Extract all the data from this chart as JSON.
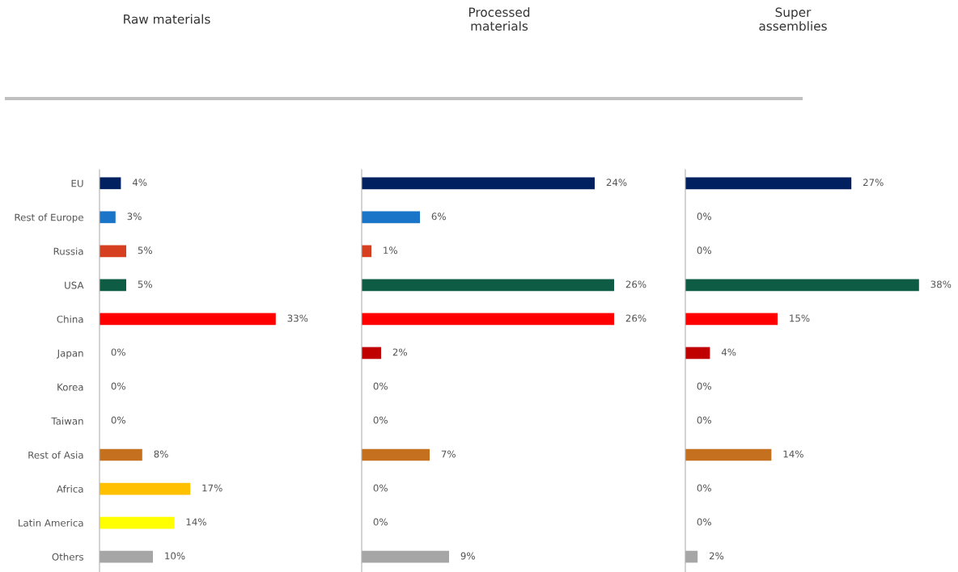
{
  "chart_data": [
    {
      "type": "bar",
      "orientation": "horizontal",
      "title": "Raw materials",
      "categories": [
        "EU",
        "Rest of Europe",
        "Russia",
        "USA",
        "China",
        "Japan",
        "Korea",
        "Taiwan",
        "Rest of Asia",
        "Africa",
        "Latin America",
        "Others"
      ],
      "values": [
        4,
        3,
        5,
        5,
        33,
        0,
        0,
        0,
        8,
        17,
        14,
        10
      ],
      "value_labels": [
        "4%",
        "3%",
        "5%",
        "5%",
        "33%",
        "0%",
        "0%",
        "0%",
        "8%",
        "17%",
        "14%",
        "10%"
      ],
      "colors": [
        "#002060",
        "#1a75c8",
        "#d63f1f",
        "#0f5c45",
        "#ff0000",
        "#c00000",
        "#ffd966",
        "#92d050",
        "#c5701e",
        "#ffc000",
        "#ffff00",
        "#a6a6a6"
      ],
      "tick_labels": "y"
    },
    {
      "type": "bar",
      "orientation": "horizontal",
      "title": "Processed\nmaterials",
      "categories": [
        null,
        null,
        null,
        null,
        null,
        null,
        null,
        null,
        null,
        null,
        null,
        null
      ],
      "values": [
        24,
        6,
        1,
        26,
        26,
        2,
        0,
        0,
        7,
        0,
        0,
        9
      ],
      "value_labels": [
        "24%",
        "6%",
        "1%",
        "26%",
        "26%",
        "2%",
        "0%",
        "0%",
        "7%",
        "0%",
        "0%",
        "9%"
      ],
      "colors": [
        "#002060",
        "#1a75c8",
        "#d63f1f",
        "#0f5c45",
        "#ff0000",
        "#c00000",
        "#ffd966",
        "#92d050",
        "#c5701e",
        "#ffc000",
        "#ffff00",
        "#a6a6a6"
      ],
      "tick_labels": false
    },
    {
      "type": "bar",
      "orientation": "horizontal",
      "title": "Super\nassemblies",
      "categories": [
        null,
        null,
        null,
        null,
        null,
        null,
        null,
        null,
        null,
        null,
        null,
        null
      ],
      "values": [
        27,
        0,
        0,
        38,
        15,
        4,
        0,
        0,
        14,
        0,
        0,
        2
      ],
      "value_labels": [
        "27%",
        "0%",
        "0%",
        "38%",
        "15%",
        "4%",
        "0%",
        "0%",
        "14%",
        "0%",
        "0%",
        "2%"
      ],
      "colors": [
        "#002060",
        "#1a75c8",
        "#d63f1f",
        "#0f5c45",
        "#ff0000",
        "#c00000",
        "#ffd966",
        "#92d050",
        "#c5701e",
        "#ffc000",
        "#ffff00",
        "#a6a6a6"
      ],
      "tick_labels": false
    }
  ]
}
